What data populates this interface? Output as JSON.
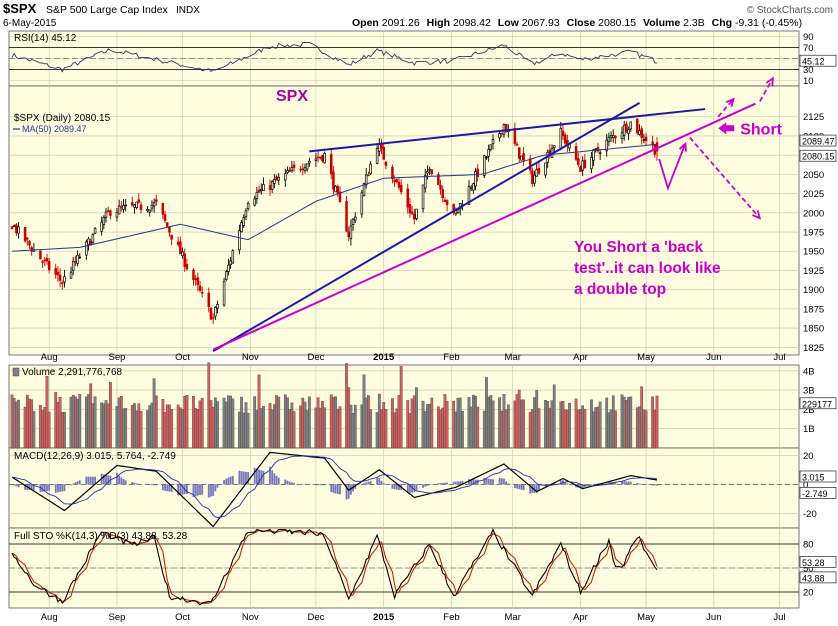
{
  "header": {
    "symbol": "$SPX",
    "name": "S&P 500 Large Cap Index",
    "exchange": "INDX",
    "date": "6-May-2015",
    "open_label": "Open",
    "open": "2091.26",
    "high_label": "High",
    "high": "2098.42",
    "low_label": "Low",
    "low": "2067.93",
    "close_label": "Close",
    "close": "2080.15",
    "volume_label": "Volume",
    "volume": "2.3B",
    "chg_label": "Chg",
    "chg": "-9.31 (-0.45%)",
    "watermark": "© StockCharts.com"
  },
  "colors": {
    "panel_bg": "#fffde0",
    "up": "#000000",
    "down": "#cc0000",
    "ma": "#1f3a8a",
    "trend_blue": "#1a1aaa",
    "trend_magenta": "#cc00cc",
    "stoch_k": "#000000",
    "stoch_d": "#cc2200",
    "vol_up": "#808080",
    "vol_down": "#d06060",
    "macd_hist": "#7777bb"
  },
  "chart_data": [
    {
      "id": "rsi",
      "type": "line",
      "title": "RSI(14) 45.12",
      "ylim": [
        0,
        100
      ],
      "yticks": [
        90,
        70,
        50,
        30,
        10
      ],
      "reference_lines": [
        70,
        30
      ],
      "last_value_tag": "45.12",
      "x": [
        "Jul 2014",
        "Aug",
        "Sep",
        "Oct",
        "Nov",
        "Dec",
        "Jan 2015",
        "Feb",
        "Mar",
        "Apr",
        "May 6"
      ],
      "values": [
        56,
        48,
        60,
        30,
        62,
        72,
        55,
        63,
        57,
        56,
        45
      ]
    },
    {
      "id": "price",
      "type": "candlestick",
      "title": "$SPX (Daily) 2080.15",
      "series_label": "MA(50) 2089.47",
      "panel_label": "SPX",
      "ylim": [
        1815,
        2165
      ],
      "yticks": [
        2125,
        2100,
        2075,
        2050,
        2025,
        2000,
        1975,
        1950,
        1925,
        1900,
        1875,
        1850,
        1825
      ],
      "last_value_tags": [
        "2089.47",
        "2080.15"
      ],
      "x_tick_labels": [
        "Aug",
        "Sep",
        "Oct",
        "Nov",
        "Dec",
        "2015",
        "Feb",
        "Mar",
        "Apr",
        "May",
        "Jun",
        "Jul"
      ],
      "keypoints": [
        {
          "date": "Jul 15",
          "close": 1985
        },
        {
          "date": "Jul 31",
          "close": 1931
        },
        {
          "date": "Aug 7",
          "close": 1910
        },
        {
          "date": "Aug 29",
          "close": 2003
        },
        {
          "date": "Sep 19",
          "close": 2011
        },
        {
          "date": "Oct 15",
          "close": 1862
        },
        {
          "date": "Oct 31",
          "close": 2018
        },
        {
          "date": "Nov 28",
          "close": 2068
        },
        {
          "date": "Dec 5",
          "close": 2075
        },
        {
          "date": "Dec 16",
          "close": 1972
        },
        {
          "date": "Dec 29",
          "close": 2090
        },
        {
          "date": "Jan 15",
          "close": 1992
        },
        {
          "date": "Jan 22",
          "close": 2063
        },
        {
          "date": "Feb 2",
          "close": 1995
        },
        {
          "date": "Feb 25",
          "close": 2115
        },
        {
          "date": "Mar 10",
          "close": 2044
        },
        {
          "date": "Mar 23",
          "close": 2104
        },
        {
          "date": "Apr 1",
          "close": 2059
        },
        {
          "date": "Apr 14",
          "close": 2095
        },
        {
          "date": "Apr 24",
          "close": 2117
        },
        {
          "date": "May 6",
          "close": 2080
        }
      ],
      "ma50_keypoints": [
        {
          "date": "Jul 15",
          "value": 1950
        },
        {
          "date": "Aug 15",
          "value": 1955
        },
        {
          "date": "Sep 30",
          "value": 1985
        },
        {
          "date": "Oct 31",
          "value": 1965
        },
        {
          "date": "Dec 1",
          "value": 2015
        },
        {
          "date": "Jan 1",
          "value": 2045
        },
        {
          "date": "Feb 15",
          "value": 2050
        },
        {
          "date": "Mar 15",
          "value": 2075
        },
        {
          "date": "May 6",
          "value": 2089
        }
      ],
      "annotations": {
        "short_label": "Short",
        "note": [
          "You Short  a 'back",
          "test'..it can look like",
          "a double top"
        ]
      }
    },
    {
      "id": "volume",
      "type": "bar",
      "title": "Volume 2,291,776,768",
      "yticks_labels": [
        "4B",
        "3B",
        "2B",
        "1B"
      ],
      "yticks": [
        4,
        3,
        2,
        1
      ],
      "ylim": [
        0,
        4.3
      ],
      "unit": "B",
      "last_value_tag": "2291776768"
    },
    {
      "id": "macd",
      "type": "line",
      "title": "MACD(12,26,9) 3.015, 5.764, -2.749",
      "ylim": [
        -30,
        25
      ],
      "yticks": [
        20,
        0,
        -20
      ],
      "last_value_tags": [
        "3.015",
        "-2.749"
      ],
      "macd_keypoints": [
        {
          "date": "Jul 15",
          "value": 5
        },
        {
          "date": "Aug 8",
          "value": -18
        },
        {
          "date": "Sep 1",
          "value": 13
        },
        {
          "date": "Sep 19",
          "value": 9
        },
        {
          "date": "Oct 15",
          "value": -29
        },
        {
          "date": "Nov 10",
          "value": 22
        },
        {
          "date": "Dec 5",
          "value": 18
        },
        {
          "date": "Dec 16",
          "value": -4
        },
        {
          "date": "Dec 30",
          "value": 10
        },
        {
          "date": "Jan 15",
          "value": -9
        },
        {
          "date": "Feb 3",
          "value": -2
        },
        {
          "date": "Feb 25",
          "value": 14
        },
        {
          "date": "Mar 12",
          "value": -5
        },
        {
          "date": "Mar 24",
          "value": 4
        },
        {
          "date": "Apr 2",
          "value": -3
        },
        {
          "date": "Apr 24",
          "value": 6
        },
        {
          "date": "May 6",
          "value": 3
        }
      ]
    },
    {
      "id": "stoch",
      "type": "line",
      "title": "Full STO %K(14,3) %D(3) 43.88, 53.28",
      "ylim": [
        0,
        100
      ],
      "yticks": [
        80,
        50,
        20
      ],
      "reference_lines": [
        80,
        20
      ],
      "last_value_tags": [
        "53.28",
        "43.88"
      ],
      "x_tick_labels": [
        "Aug",
        "Sep",
        "Oct",
        "Nov",
        "Dec",
        "2015",
        "Feb",
        "Mar",
        "Apr",
        "May",
        "Jun",
        "Jul"
      ],
      "k_keypoints": [
        {
          "date": "Jul 15",
          "value": 70
        },
        {
          "date": "Jul 25",
          "value": 30
        },
        {
          "date": "Aug 7",
          "value": 8
        },
        {
          "date": "Aug 25",
          "value": 95
        },
        {
          "date": "Sep 8",
          "value": 78
        },
        {
          "date": "Sep 18",
          "value": 88
        },
        {
          "date": "Sep 25",
          "value": 15
        },
        {
          "date": "Oct 14",
          "value": 5
        },
        {
          "date": "Oct 31",
          "value": 97
        },
        {
          "date": "Nov 28",
          "value": 94
        },
        {
          "date": "Dec 5",
          "value": 90
        },
        {
          "date": "Dec 16",
          "value": 10
        },
        {
          "date": "Dec 29",
          "value": 90
        },
        {
          "date": "Jan 6",
          "value": 15
        },
        {
          "date": "Jan 22",
          "value": 80
        },
        {
          "date": "Feb 2",
          "value": 15
        },
        {
          "date": "Feb 20",
          "value": 95
        },
        {
          "date": "Mar 10",
          "value": 15
        },
        {
          "date": "Mar 23",
          "value": 80
        },
        {
          "date": "Apr 1",
          "value": 20
        },
        {
          "date": "Apr 14",
          "value": 85
        },
        {
          "date": "Apr 18",
          "value": 40
        },
        {
          "date": "Apr 27",
          "value": 90
        },
        {
          "date": "May 6",
          "value": 44
        }
      ]
    }
  ]
}
